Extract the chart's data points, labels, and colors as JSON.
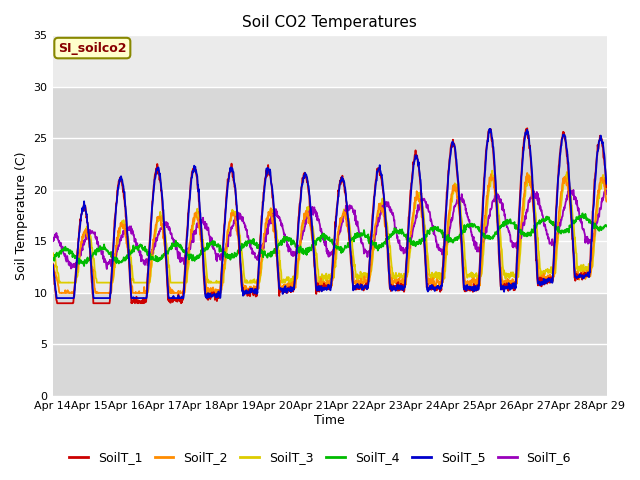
{
  "title": "Soil CO2 Temperatures",
  "ylabel": "Soil Temperature (C)",
  "xlabel": "Time",
  "annotation": "SI_soilco2",
  "ylim": [
    0,
    35
  ],
  "yticks": [
    0,
    5,
    10,
    15,
    20,
    25,
    30,
    35
  ],
  "x_labels": [
    "Apr 14",
    "Apr 15",
    "Apr 16",
    "Apr 17",
    "Apr 18",
    "Apr 19",
    "Apr 20",
    "Apr 21",
    "Apr 22",
    "Apr 23",
    "Apr 24",
    "Apr 25",
    "Apr 26",
    "Apr 27",
    "Apr 28",
    "Apr 29"
  ],
  "series_colors": {
    "SoilT_1": "#cc0000",
    "SoilT_2": "#ff8c00",
    "SoilT_3": "#ddcc00",
    "SoilT_4": "#00bb00",
    "SoilT_5": "#0000cc",
    "SoilT_6": "#9900bb"
  },
  "plot_bg_color": "#e8e8e8",
  "grid_color": "#ffffff",
  "title_fontsize": 11,
  "axis_label_fontsize": 9,
  "tick_fontsize": 8,
  "legend_fontsize": 9,
  "linewidth": 1.3
}
